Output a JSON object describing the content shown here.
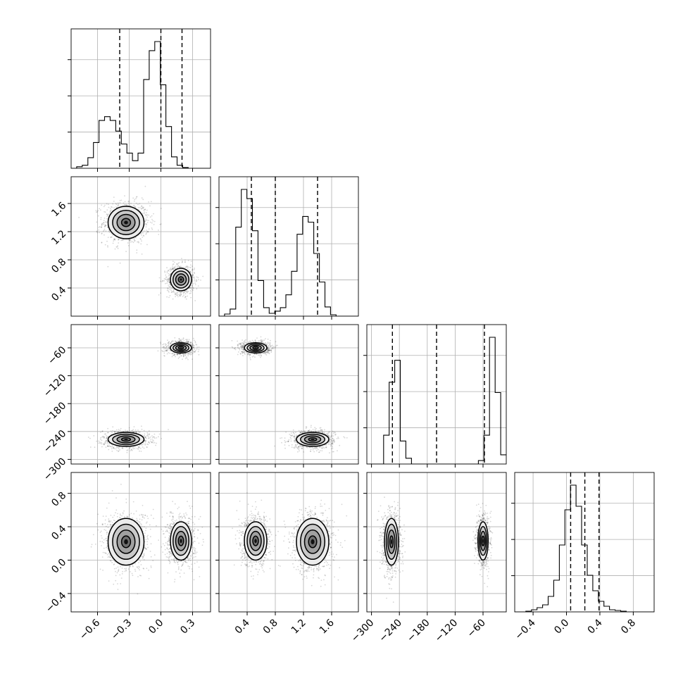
{
  "chart_data": {
    "type": "corner",
    "parameters": [
      {
        "range": [
          -0.85,
          0.47
        ],
        "ticks": [
          -0.6,
          -0.3,
          0.0,
          0.3
        ],
        "tick_labels": [
          "−0.6",
          "−0.3",
          "0.0",
          "0.3"
        ],
        "quantiles": [
          -0.39,
          0.0,
          0.2
        ],
        "histogram": {
          "start": -0.85,
          "width": 0.0528,
          "counts": [
            0,
            2,
            4,
            14,
            34,
            63,
            68,
            63,
            49,
            32,
            20,
            10,
            20,
            117,
            155,
            167,
            110,
            55,
            15,
            4,
            1,
            0,
            0,
            0,
            0
          ]
        }
      },
      {
        "range": [
          0.0,
          1.98
        ],
        "ticks": [
          0.4,
          0.8,
          1.2,
          1.6
        ],
        "tick_labels": [
          "0.4",
          "0.8",
          "1.2",
          "1.6"
        ],
        "quantiles": [
          0.46,
          0.8,
          1.4
        ],
        "histogram": {
          "start": 0.0,
          "width": 0.0792,
          "counts": [
            0,
            3,
            10,
            125,
            178,
            165,
            120,
            50,
            12,
            4,
            7,
            12,
            30,
            63,
            115,
            140,
            132,
            88,
            48,
            13,
            2,
            0,
            0,
            0,
            0
          ]
        }
      },
      {
        "range": [
          -310,
          -10
        ],
        "ticks": [
          -300,
          -240,
          -180,
          -120,
          -60
        ],
        "tick_labels": [
          "−300",
          "−240",
          "−180",
          "−120",
          "−60"
        ],
        "quantiles": [
          -255,
          -160,
          -57
        ],
        "histogram": {
          "start": -310,
          "width": 12,
          "counts": [
            0,
            0,
            0,
            25,
            71,
            90,
            20,
            5,
            0,
            0,
            0,
            0,
            0,
            0,
            0,
            0,
            0,
            0,
            0,
            0,
            3,
            25,
            110,
            62,
            8
          ]
        }
      },
      {
        "range": [
          -0.62,
          1.05
        ],
        "ticks": [
          -0.4,
          0.0,
          0.4,
          0.8
        ],
        "tick_labels": [
          "−0.4",
          "0.0",
          "0.4",
          "0.8"
        ],
        "quantiles": [
          0.05,
          0.22,
          0.39
        ],
        "histogram": {
          "start": -0.62,
          "width": 0.0668,
          "counts": [
            0,
            0,
            1,
            3,
            6,
            10,
            22,
            45,
            95,
            145,
            180,
            150,
            95,
            52,
            30,
            15,
            8,
            3,
            2,
            1,
            0,
            0,
            0,
            0,
            0
          ]
        }
      }
    ],
    "modes": [
      {
        "weight": 0.52,
        "mean": [
          -0.33,
          1.33,
          -257,
          0.22
        ],
        "sd": [
          0.085,
          0.115,
          7.5,
          0.14
        ]
      },
      {
        "weight": 0.48,
        "mean": [
          0.19,
          0.52,
          -60,
          0.23
        ],
        "sd": [
          0.05,
          0.08,
          5.5,
          0.115
        ]
      }
    ],
    "contour_levels_sigma": [
      0.5,
      1.0,
      1.5,
      2.0
    ],
    "grid": true,
    "histogram_style": "step",
    "quantile_style": "dashed"
  }
}
